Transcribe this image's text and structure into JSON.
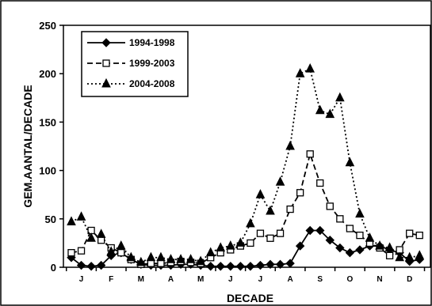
{
  "chart_data": {
    "type": "line",
    "title": "",
    "xlabel": "DECADE",
    "ylabel": "GEM.AANTAL/DECADE",
    "ylim": [
      0,
      250
    ],
    "yticks": [
      0,
      50,
      100,
      150,
      200,
      250
    ],
    "grid": false,
    "legend_position": "top-left",
    "month_labels": [
      "J",
      "F",
      "M",
      "A",
      "M",
      "J",
      "J",
      "A",
      "S",
      "O",
      "N",
      "D"
    ],
    "x": [
      1,
      2,
      3,
      4,
      5,
      6,
      7,
      8,
      9,
      10,
      11,
      12,
      13,
      14,
      15,
      16,
      17,
      18,
      19,
      20,
      21,
      22,
      23,
      24,
      25,
      26,
      27,
      28,
      29,
      30,
      31,
      32,
      33,
      34,
      35,
      36
    ],
    "series": [
      {
        "name": "1994-1998",
        "line_style": "solid",
        "marker": "diamond",
        "values": [
          10,
          2,
          1,
          2,
          12,
          15,
          8,
          3,
          2,
          2,
          2,
          3,
          3,
          2,
          1,
          1,
          1,
          1,
          1,
          2,
          3,
          3,
          4,
          22,
          38,
          38,
          28,
          20,
          15,
          18,
          22,
          22,
          18,
          15,
          6,
          8
        ]
      },
      {
        "name": "1999-2003",
        "line_style": "dashed",
        "marker": "square",
        "values": [
          15,
          17,
          38,
          28,
          20,
          15,
          8,
          3,
          4,
          4,
          5,
          6,
          5,
          4,
          10,
          15,
          18,
          22,
          25,
          35,
          30,
          35,
          60,
          77,
          117,
          87,
          63,
          50,
          40,
          33,
          25,
          20,
          12,
          18,
          35,
          33
        ]
      },
      {
        "name": "2004-2008",
        "line_style": "dotted",
        "marker": "triangle",
        "values": [
          47,
          52,
          30,
          34,
          16,
          22,
          10,
          5,
          10,
          10,
          8,
          8,
          8,
          6,
          15,
          20,
          22,
          25,
          45,
          75,
          58,
          88,
          125,
          200,
          205,
          162,
          158,
          175,
          108,
          55,
          30,
          22,
          20,
          10,
          10,
          12
        ]
      }
    ]
  }
}
